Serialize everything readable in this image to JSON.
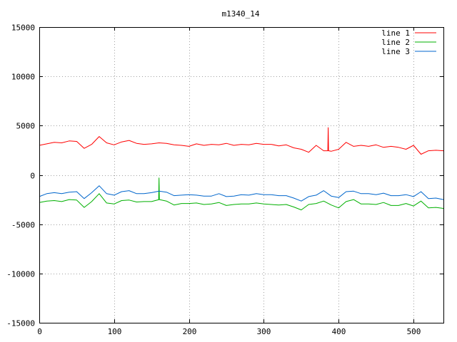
{
  "chart_data": {
    "type": "line",
    "title": "m1340_14",
    "xlabel": "",
    "ylabel": "",
    "xlim": [
      0,
      540
    ],
    "ylim": [
      -15000,
      15000
    ],
    "x_ticks": [
      0,
      100,
      200,
      300,
      400,
      500
    ],
    "y_ticks": [
      -15000,
      -10000,
      -5000,
      0,
      5000,
      10000,
      15000
    ],
    "grid": true,
    "legend_position": "top-right",
    "x_step": 10,
    "series": [
      {
        "name": "line 1",
        "color": "#ff0000",
        "values": [
          3000,
          3150,
          3300,
          3250,
          3450,
          3400,
          2700,
          3100,
          3900,
          3250,
          3050,
          3350,
          3500,
          3200,
          3100,
          3150,
          3250,
          3200,
          3050,
          3000,
          2900,
          3150,
          3000,
          3100,
          3050,
          3200,
          3000,
          3100,
          3050,
          3200,
          3100,
          3100,
          2950,
          3050,
          2750,
          2600,
          2300,
          3000,
          2450,
          2400,
          2600,
          3300,
          2900,
          3000,
          2900,
          3050,
          2800,
          2900,
          2800,
          2600,
          3000,
          2100,
          2450,
          2500,
          2450
        ],
        "spikes": [
          {
            "x": 386,
            "y": 4800
          }
        ]
      },
      {
        "name": "line 2",
        "color": "#00b000",
        "values": [
          -2800,
          -2650,
          -2600,
          -2700,
          -2500,
          -2550,
          -3300,
          -2700,
          -1900,
          -2850,
          -2950,
          -2600,
          -2550,
          -2750,
          -2700,
          -2700,
          -2500,
          -2650,
          -3050,
          -2900,
          -2900,
          -2850,
          -3000,
          -2950,
          -2800,
          -3100,
          -3000,
          -2950,
          -2950,
          -2850,
          -2950,
          -3000,
          -3050,
          -3000,
          -3250,
          -3550,
          -3000,
          -2900,
          -2650,
          -3050,
          -3350,
          -2700,
          -2500,
          -2950,
          -2950,
          -3000,
          -2800,
          -3100,
          -3100,
          -2900,
          -3150,
          -2650,
          -3350,
          -3300,
          -3400
        ],
        "spikes": [
          {
            "x": 160,
            "y": -300
          }
        ]
      },
      {
        "name": "line 3",
        "color": "#0066cc",
        "values": [
          -2200,
          -1900,
          -1800,
          -1900,
          -1750,
          -1700,
          -2400,
          -1800,
          -1100,
          -1900,
          -2050,
          -1700,
          -1600,
          -1900,
          -1900,
          -1800,
          -1650,
          -1750,
          -2100,
          -2050,
          -2000,
          -2050,
          -2150,
          -2150,
          -1900,
          -2200,
          -2150,
          -2000,
          -2050,
          -1900,
          -2000,
          -2000,
          -2100,
          -2100,
          -2350,
          -2650,
          -2200,
          -2050,
          -1600,
          -2150,
          -2300,
          -1700,
          -1650,
          -1900,
          -1900,
          -2000,
          -1850,
          -2100,
          -2100,
          -2000,
          -2200,
          -1700,
          -2400,
          -2350,
          -2500
        ],
        "spikes": []
      }
    ]
  }
}
